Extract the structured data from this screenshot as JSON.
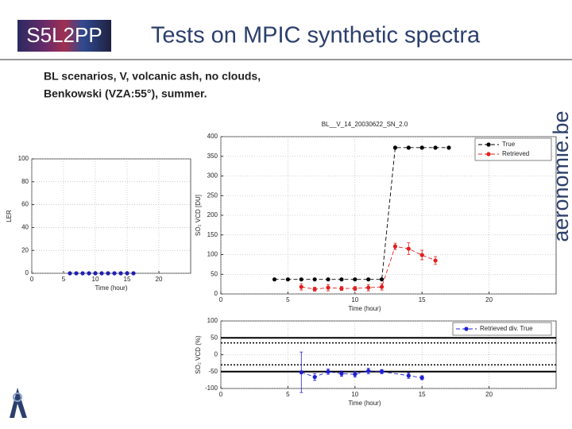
{
  "header": {
    "logo": "S5L2PP",
    "title": "Tests on MPIC synthetic spectra"
  },
  "subtitle": [
    "BL scenarios, V, volcanic ash, no clouds,",
    "Benkowski (VZA:55°), summer."
  ],
  "side_logo": "aeronomie.be",
  "chart_data": [
    {
      "type": "scatter",
      "xlabel": "Time (hour)",
      "ylabel": "LER",
      "xlim": [
        0,
        25
      ],
      "xticks": [
        0,
        5,
        10,
        15,
        20
      ],
      "ylim": [
        0,
        100
      ],
      "yticks": [
        0,
        20,
        40,
        60,
        80,
        100
      ],
      "grid": true,
      "series": [
        {
          "color": "#1f1fb4",
          "line": "none",
          "x": [
            6,
            7,
            8,
            9,
            10,
            11,
            12,
            13,
            14,
            15,
            16
          ],
          "values": [
            0,
            0,
            0,
            0,
            0,
            0,
            0,
            0,
            0,
            0,
            0
          ]
        }
      ]
    },
    {
      "type": "line",
      "title": "BL__V_14_20030622_SN_2.0",
      "xlabel": "Time (hour)",
      "ylabel": "SO₂ VCD [DU]",
      "xlim": [
        0,
        25
      ],
      "xticks": [
        0,
        5,
        10,
        15,
        20
      ],
      "ylim": [
        0,
        400
      ],
      "yticks": [
        0,
        50,
        100,
        150,
        200,
        250,
        300,
        350,
        400
      ],
      "grid": true,
      "legend": "upper-right",
      "series": [
        {
          "name": "True",
          "color": "#000000",
          "line": "dashed",
          "x": [
            4,
            5,
            6,
            7,
            8,
            9,
            10,
            11,
            12,
            13,
            14,
            15,
            16,
            17
          ],
          "values": [
            37,
            37,
            37,
            37,
            37,
            37,
            37,
            37,
            37,
            372,
            372,
            372,
            372,
            372
          ]
        },
        {
          "name": "Retrieved",
          "color": "#e01f1f",
          "line": "dashed",
          "x": [
            6,
            7,
            8,
            9,
            10,
            11,
            12,
            13,
            14,
            15,
            16
          ],
          "values": [
            18,
            12,
            16,
            14,
            14,
            16,
            18,
            121,
            115,
            99,
            85
          ],
          "errors": [
            8,
            5,
            8,
            5,
            5,
            8,
            8,
            8,
            15,
            12,
            10
          ]
        }
      ]
    },
    {
      "type": "line",
      "xlabel": "Time (hour)",
      "ylabel": "SO₂ VCD (%)",
      "xlim": [
        0,
        25
      ],
      "xticks": [
        0,
        5,
        10,
        15,
        20
      ],
      "ylim": [
        -100,
        100
      ],
      "yticks": [
        -100,
        -50,
        0,
        50,
        100
      ],
      "grid": true,
      "legend": "upper-right",
      "hlines": [
        {
          "value": 50,
          "style": "solid"
        },
        {
          "value": 35,
          "style": "dotted"
        },
        {
          "value": -30,
          "style": "dotted"
        },
        {
          "value": -50,
          "style": "solid"
        }
      ],
      "series": [
        {
          "name": "Retrieved div. True",
          "color": "#1f1fd4",
          "line": "dashed",
          "x": [
            6,
            7,
            8,
            9,
            10,
            11,
            12,
            14,
            15
          ],
          "values": [
            -52,
            -66,
            -50,
            -56,
            -58,
            -48,
            -50,
            -62,
            -68
          ],
          "errors": [
            60,
            10,
            8,
            8,
            8,
            8,
            6,
            8,
            6
          ]
        }
      ]
    }
  ]
}
